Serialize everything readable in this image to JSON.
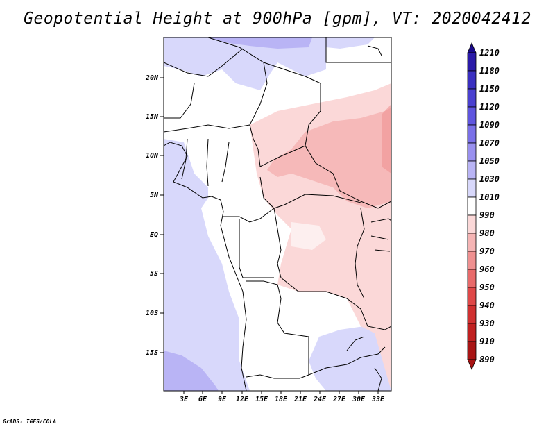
{
  "title": "Geopotential Height at 900hPa [gpm], VT: 2020042412",
  "credit": "GrADS: IGES/COLA",
  "map": {
    "lon_labels": [
      "3E",
      "6E",
      "9E",
      "12E",
      "15E",
      "18E",
      "21E",
      "24E",
      "27E",
      "30E",
      "33E"
    ],
    "lat_labels": [
      "20N",
      "15N",
      "10N",
      "5N",
      "EQ",
      "5S",
      "10S",
      "15S"
    ]
  },
  "colorbar": {
    "levels": [
      "1210",
      "1180",
      "1150",
      "1120",
      "1090",
      "1070",
      "1050",
      "1030",
      "1010",
      "990",
      "980",
      "970",
      "960",
      "950",
      "940",
      "930",
      "910",
      "890"
    ],
    "colors": [
      "#1a0a8c",
      "#2a1aa8",
      "#3a2fc0",
      "#4a40d0",
      "#5f55df",
      "#7a70e8",
      "#9990ef",
      "#b9b4f5",
      "#d8d8fb",
      "#ffffff",
      "#fbd8d8",
      "#f5b4b4",
      "#ef9090",
      "#e86a6a",
      "#df4848",
      "#d03030",
      "#c02020",
      "#a81414"
    ]
  }
}
